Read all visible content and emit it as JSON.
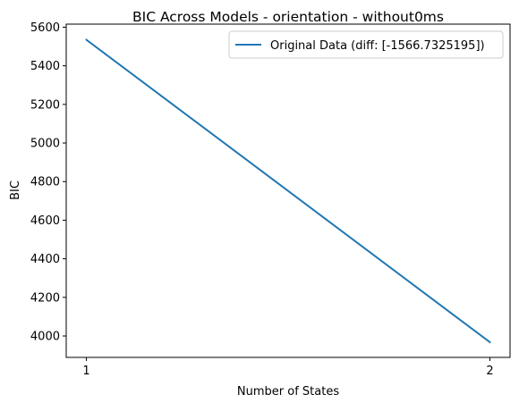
{
  "chart_data": {
    "type": "line",
    "title": "BIC Across Models - orientation - without0ms",
    "xlabel": "Number of States",
    "ylabel": "BIC",
    "x": [
      1,
      2
    ],
    "xticks": [
      1,
      2
    ],
    "yticks": [
      4000,
      4200,
      4400,
      4600,
      4800,
      5000,
      5200,
      5400,
      5600
    ],
    "xlim": [
      0.95,
      2.05
    ],
    "ylim": [
      3889,
      5616
    ],
    "grid": false,
    "legend_position": "top-right",
    "series": [
      {
        "name": "Original Data (diff: [-1566.7325195])",
        "values": [
          5535,
          3968
        ],
        "color": "#1f77b4"
      }
    ]
  }
}
